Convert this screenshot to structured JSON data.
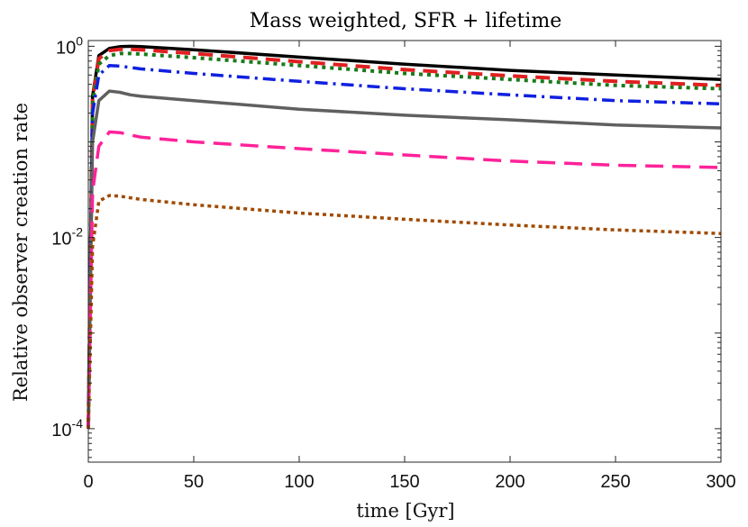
{
  "chart_data": {
    "type": "line",
    "title": "Mass weighted, SFR + lifetime",
    "xlabel": "time [Gyr]",
    "ylabel": "Relative observer creation rate",
    "xlim": [
      0,
      300
    ],
    "ylim_log10": [
      -4.35,
      0.06
    ],
    "yscale": "log",
    "x_ticks": [
      {
        "value": 0,
        "label": "0"
      },
      {
        "value": 50,
        "label": "50"
      },
      {
        "value": 100,
        "label": "100"
      },
      {
        "value": 150,
        "label": "150"
      },
      {
        "value": 200,
        "label": "200"
      },
      {
        "value": 250,
        "label": "250"
      },
      {
        "value": 300,
        "label": "300"
      }
    ],
    "y_ticks": [
      {
        "value": 0.0001,
        "base": "10",
        "exponent": "-4"
      },
      {
        "value": 0.01,
        "base": "10",
        "exponent": "-2"
      },
      {
        "value": 1,
        "base": "10",
        "exponent": "0"
      }
    ],
    "grid": false,
    "series": [
      {
        "name": "black solid",
        "color": "#000000",
        "dash": "",
        "width": 3.5,
        "x": [
          0,
          2,
          5,
          10,
          15,
          20,
          25,
          50,
          100,
          150,
          200,
          250,
          300
        ],
        "y": [
          0.0001,
          0.3,
          0.8,
          0.95,
          0.99,
          1.0,
          0.99,
          0.92,
          0.77,
          0.65,
          0.56,
          0.5,
          0.45
        ]
      },
      {
        "name": "red dashed",
        "color": "#e02020",
        "dash": "16,9",
        "width": 4,
        "x": [
          0,
          2,
          5,
          10,
          15,
          20,
          25,
          50,
          100,
          150,
          200,
          250,
          300
        ],
        "y": [
          0.0001,
          0.28,
          0.74,
          0.9,
          0.93,
          0.93,
          0.92,
          0.84,
          0.69,
          0.57,
          0.49,
          0.43,
          0.39
        ]
      },
      {
        "name": "green dotted",
        "color": "#1a7a1a",
        "dash": "4,5",
        "width": 4,
        "x": [
          0,
          2,
          5,
          10,
          15,
          20,
          25,
          50,
          100,
          150,
          200,
          250,
          300
        ],
        "y": [
          0.0001,
          0.25,
          0.65,
          0.8,
          0.84,
          0.84,
          0.83,
          0.76,
          0.63,
          0.52,
          0.45,
          0.39,
          0.36
        ]
      },
      {
        "name": "blue dash-dot",
        "color": "#1020e0",
        "dash": "14,6,3,6",
        "width": 3.5,
        "x": [
          0,
          2,
          5,
          10,
          15,
          20,
          25,
          50,
          100,
          150,
          200,
          250,
          300
        ],
        "y": [
          0.0001,
          0.2,
          0.5,
          0.63,
          0.62,
          0.6,
          0.58,
          0.52,
          0.43,
          0.36,
          0.31,
          0.27,
          0.25
        ]
      },
      {
        "name": "gray solid",
        "color": "#606060",
        "dash": "",
        "width": 3.5,
        "x": [
          0,
          2,
          5,
          10,
          15,
          20,
          25,
          50,
          100,
          150,
          200,
          250,
          300
        ],
        "y": [
          0.0001,
          0.1,
          0.27,
          0.34,
          0.33,
          0.31,
          0.3,
          0.27,
          0.22,
          0.19,
          0.17,
          0.15,
          0.14
        ]
      },
      {
        "name": "magenta dashed",
        "color": "#ff2299",
        "dash": "20,10",
        "width": 3.5,
        "x": [
          0,
          2,
          5,
          10,
          15,
          20,
          25,
          50,
          100,
          150,
          200,
          250,
          300
        ],
        "y": [
          0.0001,
          0.03,
          0.09,
          0.127,
          0.125,
          0.118,
          0.112,
          0.1,
          0.085,
          0.073,
          0.063,
          0.057,
          0.054
        ]
      },
      {
        "name": "brown dotted",
        "color": "#a04a00",
        "dash": "4,4",
        "width": 3.5,
        "x": [
          0,
          2,
          5,
          10,
          15,
          20,
          25,
          50,
          100,
          150,
          200,
          250,
          300
        ],
        "y": [
          0.0001,
          0.008,
          0.024,
          0.0275,
          0.027,
          0.026,
          0.025,
          0.022,
          0.018,
          0.0155,
          0.0135,
          0.012,
          0.011
        ]
      }
    ]
  }
}
